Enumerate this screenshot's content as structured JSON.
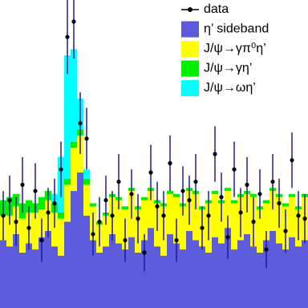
{
  "chart_data": {
    "type": "stacked_histogram_with_data",
    "ylim": [
      0,
      100
    ],
    "series": [
      {
        "name": "η’ sideband",
        "color": "#5b5bdc",
        "values": [
          22,
          20,
          24,
          18,
          21,
          19,
          23,
          25,
          20,
          17,
          28,
          38,
          44,
          30,
          22,
          18,
          20,
          24,
          21,
          19,
          23,
          18,
          22,
          26,
          20,
          17,
          24,
          21,
          19,
          25,
          22,
          20,
          18,
          23,
          21,
          26,
          19,
          22,
          24,
          20,
          18,
          22,
          25,
          21,
          19,
          23,
          20,
          22
        ]
      },
      {
        "name": "J/ψ→γπ⁰η’",
        "color": "#ffff00",
        "values": [
          8,
          10,
          9,
          11,
          10,
          12,
          9,
          10,
          11,
          12,
          12,
          14,
          12,
          10,
          11,
          9,
          10,
          12,
          14,
          13,
          15,
          14,
          13,
          12,
          14,
          16,
          13,
          15,
          14,
          13,
          15,
          12,
          16,
          14,
          13,
          12,
          15,
          14,
          13,
          16,
          14,
          12,
          13,
          15,
          14,
          13,
          12,
          14
        ]
      },
      {
        "name": "J/ψ→γη’",
        "color": "#00ee00",
        "values": [
          5,
          6,
          4,
          5,
          4,
          3,
          4,
          3,
          3,
          2,
          2,
          2,
          2,
          2,
          1,
          1,
          1,
          1,
          1,
          1,
          1,
          1,
          1,
          1,
          1,
          1,
          1,
          1,
          1,
          1,
          1,
          1,
          1,
          1,
          1,
          1,
          1,
          1,
          1,
          1,
          1,
          1,
          1,
          1,
          1,
          1,
          1,
          1
        ]
      },
      {
        "name": "J/ψ→ωη’",
        "color": "#00ffff",
        "values": [
          0,
          0,
          0,
          0,
          0,
          0,
          0,
          0,
          3,
          18,
          40,
          30,
          10,
          3,
          0,
          0,
          0,
          0,
          0,
          0,
          0,
          0,
          0,
          0,
          0,
          0,
          0,
          0,
          0,
          0,
          0,
          0,
          0,
          0,
          0,
          0,
          0,
          0,
          0,
          0,
          0,
          0,
          0,
          0,
          0,
          0,
          0,
          0
        ]
      }
    ],
    "data": {
      "name": "data",
      "color": "#000000",
      "values": [
        30,
        35,
        28,
        40,
        26,
        38,
        22,
        31,
        34,
        45,
        88,
        93,
        60,
        55,
        24,
        28,
        35,
        30,
        41,
        22,
        37,
        29,
        18,
        44,
        33,
        30,
        47,
        22,
        38,
        35,
        41,
        26,
        30,
        50,
        36,
        23,
        45,
        31,
        40,
        28,
        37,
        19,
        41,
        34,
        25,
        48,
        30,
        29
      ],
      "errors": [
        8,
        8,
        8,
        9,
        7,
        9,
        7,
        8,
        8,
        9,
        12,
        12,
        10,
        10,
        7,
        8,
        8,
        8,
        9,
        7,
        8,
        8,
        6,
        9,
        8,
        8,
        9,
        7,
        8,
        8,
        9,
        7,
        8,
        9,
        8,
        7,
        9,
        8,
        9,
        8,
        8,
        6,
        9,
        8,
        7,
        9,
        8,
        8
      ]
    }
  }
}
